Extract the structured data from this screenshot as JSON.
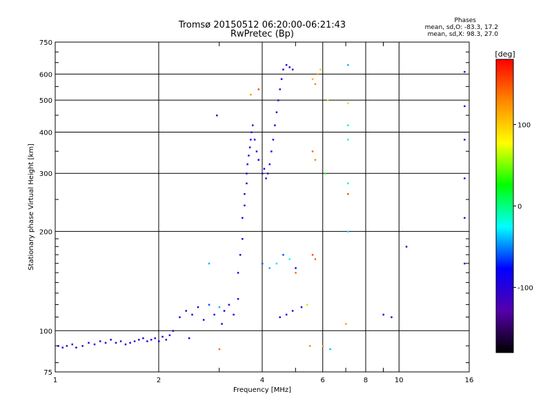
{
  "chart_data": {
    "type": "scatter",
    "title": "Tromsø 20150512 06:20:00-06:21:43",
    "subtitle": "RwPretec (Bp)",
    "xlabel": "Frequency [MHz]",
    "ylabel": "Stationary phase Virtual Height [km]",
    "x_scale": "log",
    "y_scale": "log",
    "xlim": [
      1,
      16
    ],
    "ylim": [
      75,
      750
    ],
    "x_ticks": [
      1,
      2,
      4,
      6,
      8,
      10,
      16
    ],
    "x_tick_labels": [
      "1",
      "2",
      "4",
      "6",
      "8",
      "10",
      "16"
    ],
    "x_minor_ticks": [
      3,
      5,
      7,
      9
    ],
    "y_ticks": [
      75,
      100,
      200,
      300,
      400,
      500,
      600,
      750
    ],
    "y_tick_labels": [
      "75",
      "100",
      "200",
      "300",
      "400",
      "500",
      "600",
      "750"
    ],
    "grid": true,
    "phases_box": {
      "heading": "Phases",
      "line_o": "mean, sd,O: -83.3, 17.2",
      "line_x": "mean, sd,X:  98.3, 27.0"
    },
    "colorbar": {
      "label": "[deg]",
      "range": [
        -180,
        180
      ],
      "ticks": [
        100,
        0,
        -100
      ],
      "tick_labels": [
        "100",
        "0",
        "-100"
      ],
      "colors": [
        "#ff0000",
        "#ff8800",
        "#ffff00",
        "#00ff00",
        "#00ffff",
        "#0000ff",
        "#5500aa",
        "#000000"
      ]
    },
    "series": [
      {
        "points": [
          [
            1.02,
            90,
            -100
          ],
          [
            1.05,
            89,
            -95
          ],
          [
            1.08,
            90,
            -110
          ],
          [
            1.12,
            91,
            -100
          ],
          [
            1.15,
            89,
            -90
          ],
          [
            1.2,
            90,
            -105
          ],
          [
            1.25,
            92,
            -100
          ],
          [
            1.3,
            91,
            -95
          ],
          [
            1.35,
            93,
            -110
          ],
          [
            1.4,
            92,
            -100
          ],
          [
            1.45,
            94,
            -90
          ],
          [
            1.5,
            92,
            -100
          ],
          [
            1.55,
            93,
            -105
          ],
          [
            1.6,
            91,
            -95
          ],
          [
            1.65,
            92,
            -100
          ],
          [
            1.7,
            93,
            -110
          ],
          [
            1.75,
            94,
            -100
          ],
          [
            1.8,
            95,
            -90
          ],
          [
            1.85,
            93,
            -100
          ],
          [
            1.9,
            94,
            -105
          ],
          [
            1.95,
            95,
            -95
          ],
          [
            2.0,
            93,
            -100
          ],
          [
            2.05,
            96,
            -90
          ],
          [
            2.1,
            94,
            -110
          ],
          [
            2.15,
            97,
            -100
          ],
          [
            2.2,
            100,
            -95
          ],
          [
            2.3,
            110,
            -100
          ],
          [
            2.4,
            115,
            -105
          ],
          [
            2.45,
            95,
            -80
          ],
          [
            2.5,
            112,
            -100
          ],
          [
            2.6,
            118,
            -90
          ],
          [
            2.7,
            108,
            -100
          ],
          [
            2.8,
            120,
            -60
          ],
          [
            2.9,
            112,
            -100
          ],
          [
            3.0,
            118,
            -40
          ],
          [
            3.05,
            105,
            -100
          ],
          [
            3.1,
            115,
            -90
          ],
          [
            3.2,
            120,
            -110
          ],
          [
            3.3,
            112,
            -100
          ],
          [
            3.4,
            125,
            -95
          ],
          [
            3.4,
            150,
            -100
          ],
          [
            3.45,
            170,
            -105
          ],
          [
            3.5,
            190,
            -100
          ],
          [
            3.5,
            220,
            -95
          ],
          [
            3.55,
            240,
            -100
          ],
          [
            3.55,
            260,
            -110
          ],
          [
            3.6,
            280,
            -100
          ],
          [
            3.6,
            300,
            -90
          ],
          [
            3.62,
            320,
            -100
          ],
          [
            3.65,
            340,
            -105
          ],
          [
            3.68,
            360,
            -100
          ],
          [
            3.7,
            380,
            -95
          ],
          [
            3.72,
            400,
            -100
          ],
          [
            3.75,
            420,
            -110
          ],
          [
            3.8,
            380,
            -100
          ],
          [
            3.85,
            350,
            -100
          ],
          [
            3.9,
            330,
            -90
          ],
          [
            4.0,
            300,
            -100
          ],
          [
            4.05,
            310,
            -95
          ],
          [
            4.1,
            290,
            -105
          ],
          [
            4.15,
            300,
            -100
          ],
          [
            4.2,
            320,
            -100
          ],
          [
            4.25,
            350,
            -110
          ],
          [
            4.3,
            380,
            -100
          ],
          [
            4.35,
            420,
            -95
          ],
          [
            4.4,
            460,
            -100
          ],
          [
            4.45,
            500,
            -105
          ],
          [
            4.5,
            540,
            -100
          ],
          [
            4.55,
            580,
            -90
          ],
          [
            4.6,
            620,
            -100
          ],
          [
            4.7,
            640,
            -95
          ],
          [
            4.8,
            630,
            -100
          ],
          [
            4.9,
            620,
            -105
          ],
          [
            4.0,
            160,
            -60
          ],
          [
            4.2,
            155,
            -40
          ],
          [
            4.4,
            160,
            -30
          ],
          [
            4.6,
            170,
            -60
          ],
          [
            4.8,
            165,
            -20
          ],
          [
            5.0,
            155,
            -80
          ],
          [
            5.0,
            150,
            140
          ],
          [
            4.5,
            110,
            -100
          ],
          [
            4.7,
            112,
            -95
          ],
          [
            4.9,
            115,
            -100
          ],
          [
            5.2,
            118,
            -100
          ],
          [
            5.4,
            120,
            60
          ],
          [
            5.6,
            170,
            150
          ],
          [
            5.7,
            165,
            140
          ],
          [
            5.6,
            580,
            110
          ],
          [
            5.7,
            560,
            130
          ],
          [
            5.8,
            600,
            120
          ],
          [
            5.9,
            620,
            100
          ],
          [
            5.6,
            350,
            140
          ],
          [
            5.7,
            330,
            130
          ],
          [
            6.1,
            300,
            30
          ],
          [
            6.2,
            500,
            60
          ],
          [
            7.1,
            640,
            -40
          ],
          [
            7.1,
            490,
            60
          ],
          [
            7.1,
            420,
            -10
          ],
          [
            7.1,
            380,
            -20
          ],
          [
            7.1,
            280,
            -10
          ],
          [
            7.1,
            260,
            150
          ],
          [
            7.1,
            200,
            -30
          ],
          [
            7.0,
            105,
            120
          ],
          [
            9.0,
            112,
            -100
          ],
          [
            9.5,
            110,
            -100
          ],
          [
            10.5,
            180,
            -110
          ],
          [
            15.5,
            610,
            -100
          ],
          [
            15.5,
            480,
            -95
          ],
          [
            15.5,
            380,
            -100
          ],
          [
            15.5,
            290,
            -100
          ],
          [
            15.5,
            220,
            -105
          ],
          [
            15.5,
            160,
            -100
          ],
          [
            3.7,
            520,
            120
          ],
          [
            3.9,
            540,
            150
          ],
          [
            2.8,
            160,
            -40
          ],
          [
            2.95,
            450,
            -110
          ],
          [
            3.0,
            88,
            140
          ],
          [
            5.5,
            90,
            130
          ],
          [
            6.0,
            90,
            120
          ],
          [
            6.3,
            88,
            -40
          ]
        ]
      }
    ]
  }
}
